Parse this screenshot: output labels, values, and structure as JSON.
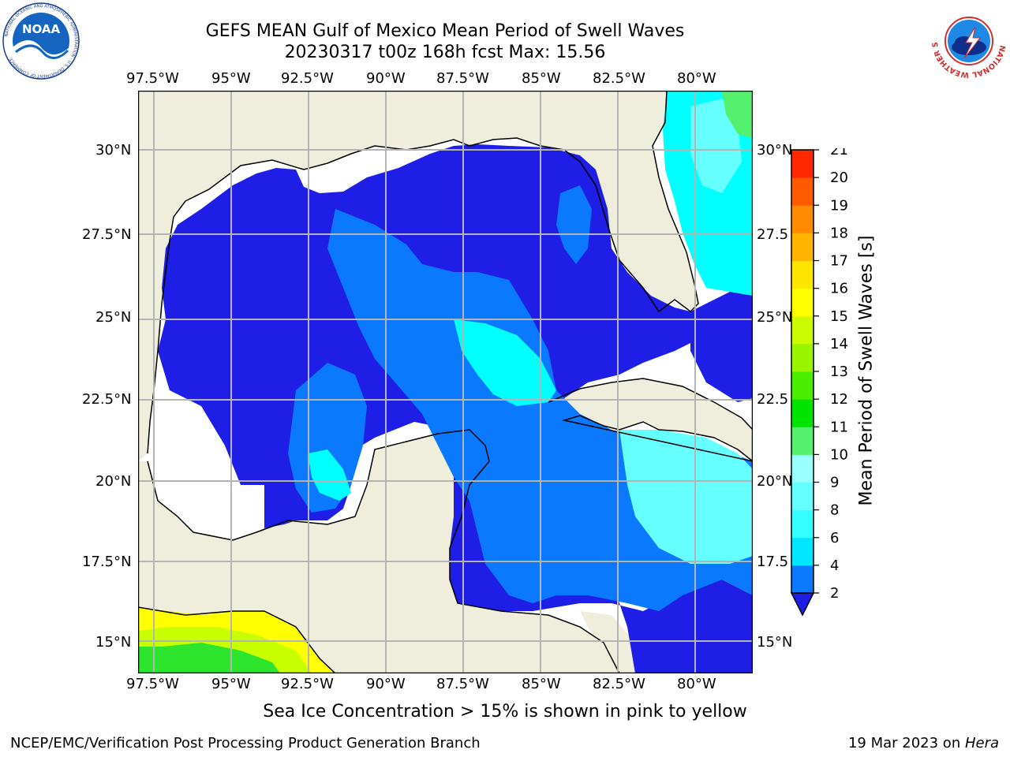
{
  "header": {
    "title": "GEFS MEAN Gulf of Mexico Mean Period of Swell Waves",
    "subtitle": "20230317 t00z 168h fcst   Max: 15.56"
  },
  "logos": {
    "left": "NOAA",
    "left_ring": "NATIONAL OCEANIC AND ATMOSPHERIC ADMINISTRATION · U.S. DEPARTMENT OF COMMERCE",
    "right_ring": "NATIONAL WEATHER SERVICE"
  },
  "map": {
    "lon_labels": [
      "97.5°W",
      "95°W",
      "92.5°W",
      "90°W",
      "87.5°W",
      "85°W",
      "82.5°W",
      "80°W"
    ],
    "lat_labels_left": [
      "30°N",
      "27.5°N",
      "25°N",
      "22.5°N",
      "20°N",
      "17.5°N",
      "15°N"
    ],
    "lat_labels_right": [
      "30°N",
      "27.5",
      "25°N",
      "22.5",
      "20°N",
      "17.5",
      "15°N"
    ],
    "colors": {
      "land": "#efeddc",
      "deep_blue": "#1e1ee6",
      "blue": "#0a78ff",
      "cyan": "#00ffff",
      "light_cyan": "#66ffff",
      "green": "#54f16e",
      "yellow": "#ffff00",
      "lime": "#c8ff00"
    }
  },
  "colorbar": {
    "title": "Mean Period of Swell Waves [s]",
    "ticks": [
      "2",
      "4",
      "6",
      "8",
      "9",
      "10",
      "11",
      "12",
      "13",
      "14",
      "15",
      "16",
      "17",
      "18",
      "19",
      "20",
      "21"
    ],
    "colors": [
      "#0a78ff",
      "#00e6ff",
      "#33ffff",
      "#66ffff",
      "#99ffff",
      "#54f16e",
      "#00e400",
      "#4cee00",
      "#99f500",
      "#ccfa00",
      "#ffff00",
      "#ffe600",
      "#ffb400",
      "#ff8c00",
      "#ff5a00",
      "#ff2800"
    ],
    "under_color": "#1e1ee6"
  },
  "notes": {
    "sea_ice": "Sea Ice Concentration > 15% is shown in pink to yellow"
  },
  "footer": {
    "left": "NCEP/EMC/Verification Post Processing Product Generation Branch",
    "right_date": "19 Mar 2023 on ",
    "right_host": "Hera"
  }
}
